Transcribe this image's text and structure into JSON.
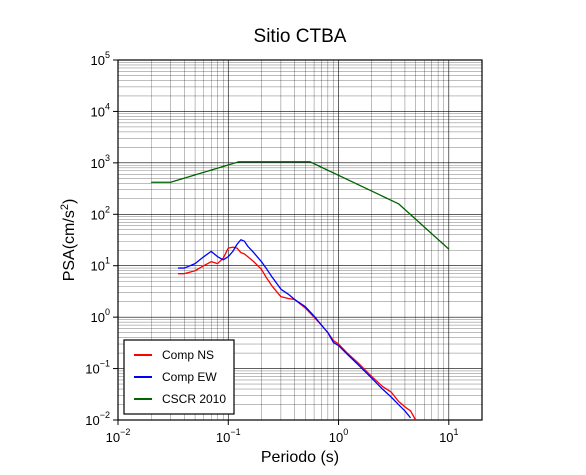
{
  "chart_data": {
    "type": "line",
    "title": "Sitio CTBA",
    "xlabel": "Periodo (s)",
    "ylabel": {
      "base": "PSA(cm/s",
      "sup": "2",
      "end": ")"
    },
    "x_scale": "log",
    "y_scale": "log",
    "xlim": [
      0.01,
      20
    ],
    "ylim": [
      0.01,
      100000
    ],
    "grid": true,
    "legend_position": "bottom-left",
    "x_ticks": [
      {
        "value": 0.01,
        "base": "10",
        "exp": "−2"
      },
      {
        "value": 0.1,
        "base": "10",
        "exp": "−1"
      },
      {
        "value": 1,
        "base": "10",
        "exp": "0"
      },
      {
        "value": 10,
        "base": "10",
        "exp": "1"
      }
    ],
    "y_ticks": [
      {
        "value": 0.01,
        "base": "10",
        "exp": "−2"
      },
      {
        "value": 0.1,
        "base": "10",
        "exp": "−1"
      },
      {
        "value": 1,
        "base": "10",
        "exp": "0"
      },
      {
        "value": 10,
        "base": "10",
        "exp": "1"
      },
      {
        "value": 100,
        "base": "10",
        "exp": "2"
      },
      {
        "value": 1000,
        "base": "10",
        "exp": "3"
      },
      {
        "value": 10000,
        "base": "10",
        "exp": "4"
      },
      {
        "value": 100000,
        "base": "10",
        "exp": "5"
      }
    ],
    "series": [
      {
        "name": "Comp NS",
        "color": "#ff0000",
        "x": [
          0.035,
          0.04,
          0.05,
          0.06,
          0.07,
          0.08,
          0.09,
          0.1,
          0.11,
          0.12,
          0.13,
          0.14,
          0.15,
          0.17,
          0.2,
          0.22,
          0.25,
          0.3,
          0.35,
          0.4,
          0.5,
          0.6,
          0.7,
          0.8,
          0.9,
          1.0,
          1.2,
          1.5,
          2.0,
          2.5,
          3.0,
          3.5,
          4.0,
          4.5,
          5.0
        ],
        "y": [
          7,
          7,
          8,
          10,
          12,
          11,
          14,
          22,
          23,
          22,
          18,
          17,
          15,
          12,
          8.5,
          6,
          4,
          2.5,
          2.3,
          2.2,
          1.5,
          1.0,
          0.7,
          0.5,
          0.35,
          0.3,
          0.2,
          0.13,
          0.07,
          0.045,
          0.035,
          0.023,
          0.018,
          0.015,
          0.01
        ]
      },
      {
        "name": "Comp EW",
        "color": "#0000ff",
        "x": [
          0.035,
          0.04,
          0.05,
          0.06,
          0.07,
          0.08,
          0.09,
          0.1,
          0.11,
          0.12,
          0.13,
          0.14,
          0.15,
          0.17,
          0.2,
          0.22,
          0.25,
          0.3,
          0.35,
          0.4,
          0.5,
          0.6,
          0.7,
          0.8,
          0.9,
          1.0,
          1.2,
          1.5,
          2.0,
          2.5,
          3.0,
          3.5,
          4.0,
          4.5
        ],
        "y": [
          9,
          9,
          11,
          15,
          19,
          15,
          13,
          15,
          19,
          26,
          32,
          30,
          24,
          18,
          12,
          9,
          6,
          3.5,
          2.8,
          2.2,
          1.6,
          1.05,
          0.7,
          0.5,
          0.32,
          0.28,
          0.19,
          0.12,
          0.065,
          0.04,
          0.028,
          0.02,
          0.015,
          0.011
        ]
      },
      {
        "name": "CSCR 2010",
        "color": "#006400",
        "x": [
          0.02,
          0.03,
          0.125,
          0.55,
          3.5,
          10
        ],
        "y": [
          420,
          420,
          1050,
          1050,
          160,
          21
        ]
      }
    ]
  }
}
